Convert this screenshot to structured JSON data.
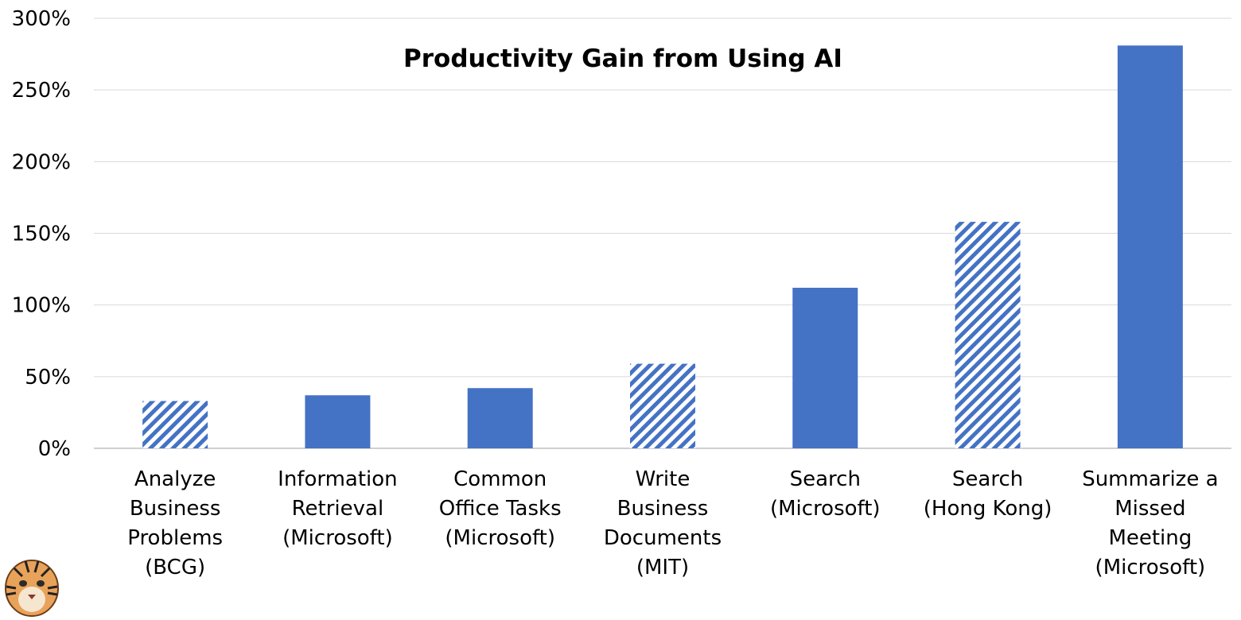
{
  "chart_data": {
    "type": "bar",
    "title": "Productivity Gain from Using AI",
    "xlabel": "",
    "ylabel": "",
    "ylim": [
      0,
      300
    ],
    "y_ticks": [
      "0%",
      "50%",
      "100%",
      "150%",
      "200%",
      "250%",
      "300%"
    ],
    "grid": true,
    "legend": "none",
    "categories": [
      [
        "Analyze",
        "Business",
        "Problems",
        "(BCG)"
      ],
      [
        "Information",
        "Retrieval",
        "(Microsoft)"
      ],
      [
        "Common",
        "Office Tasks",
        "(Microsoft)"
      ],
      [
        "Write",
        "Business",
        "Documents",
        "(MIT)"
      ],
      [
        "Search",
        "(Microsoft)"
      ],
      [
        "Search",
        "(Hong Kong)"
      ],
      [
        "Summarize a",
        "Missed",
        "Meeting",
        "(Microsoft)"
      ]
    ],
    "values": [
      33,
      37,
      42,
      59,
      112,
      158,
      281
    ],
    "bar_style": [
      "hatched",
      "solid",
      "solid",
      "hatched",
      "solid",
      "hatched",
      "solid"
    ],
    "colors": {
      "bar": "#4472c4",
      "grid": "#d9d9d9",
      "axis": "#bfbfbf"
    }
  },
  "logo": {
    "name": "tiger-logo"
  }
}
